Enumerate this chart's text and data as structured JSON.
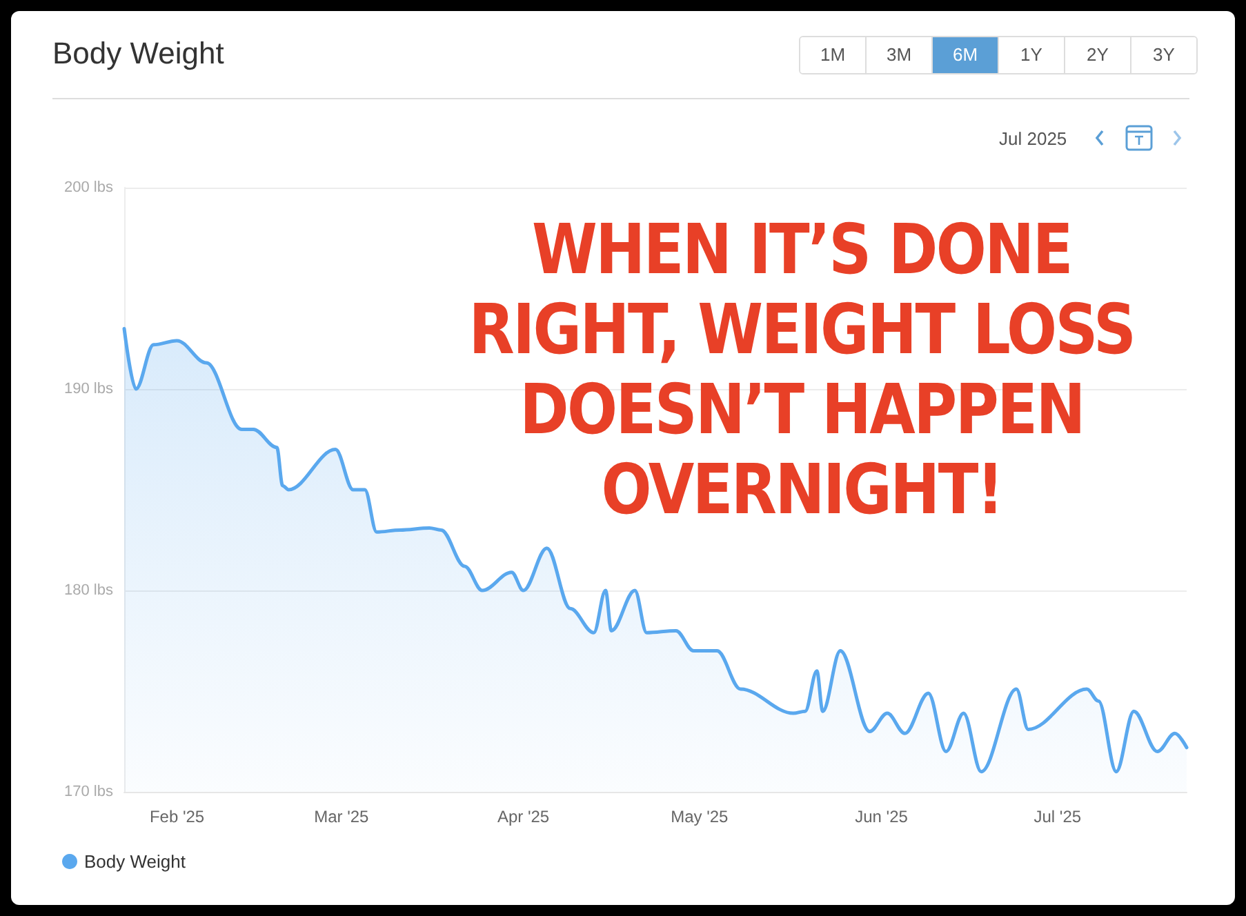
{
  "chart_data": {
    "type": "area",
    "title": "Body Weight",
    "annotations": [
      "WHEN IT’S DONE RIGHT, WEIGHT LOSS DOESN’T HAPPEN OVERNIGHT!",
      "Jul 2025",
      "1M",
      "3M",
      "6M",
      "1Y",
      "2Y",
      "3Y"
    ],
    "x": [
      "2025-01-23",
      "2025-01-25",
      "2025-01-28",
      "2025-02-01",
      "2025-02-06",
      "2025-02-12",
      "2025-02-14",
      "2025-02-18",
      "2025-02-19",
      "2025-02-20",
      "2025-02-28",
      "2025-03-03",
      "2025-03-05",
      "2025-03-07",
      "2025-03-11",
      "2025-03-16",
      "2025-03-18",
      "2025-03-22",
      "2025-03-25",
      "2025-03-30",
      "2025-04-01",
      "2025-04-05",
      "2025-04-09",
      "2025-04-13",
      "2025-04-15",
      "2025-04-16",
      "2025-04-20",
      "2025-04-22",
      "2025-04-27",
      "2025-04-30",
      "2025-05-04",
      "2025-05-08",
      "2025-05-17",
      "2025-05-19",
      "2025-05-21",
      "2025-05-22",
      "2025-05-25",
      "2025-05-30",
      "2025-06-02",
      "2025-06-05",
      "2025-06-09",
      "2025-06-12",
      "2025-06-15",
      "2025-06-18",
      "2025-06-24",
      "2025-06-26",
      "2025-07-06",
      "2025-07-08",
      "2025-07-11",
      "2025-07-14",
      "2025-07-18",
      "2025-07-21",
      "2025-07-23"
    ],
    "series": [
      {
        "name": "Body Weight",
        "color": "#5aa8ee",
        "values": [
          193.0,
          190.0,
          192.2,
          192.4,
          191.3,
          188.0,
          188.0,
          187.1,
          185.2,
          185.0,
          187.0,
          185.0,
          185.0,
          182.9,
          183.0,
          183.1,
          183.0,
          181.2,
          180.0,
          180.9,
          180.0,
          182.1,
          179.1,
          177.9,
          180.0,
          178.0,
          180.0,
          177.9,
          178.0,
          177.0,
          177.0,
          175.1,
          173.9,
          174.0,
          176.0,
          174.0,
          177.0,
          173.0,
          173.9,
          172.9,
          174.9,
          172.0,
          173.9,
          171.0,
          175.1,
          173.1,
          175.1,
          174.5,
          171.0,
          174.0,
          172.0,
          172.9,
          172.2
        ]
      }
    ],
    "xlim": [
      "2025-01-23",
      "2025-07-23"
    ],
    "xticks": [
      {
        "value": "2025-02-01",
        "label": "Feb '25"
      },
      {
        "value": "2025-03-01",
        "label": "Mar '25"
      },
      {
        "value": "2025-04-01",
        "label": "Apr '25"
      },
      {
        "value": "2025-05-01",
        "label": "May '25"
      },
      {
        "value": "2025-06-01",
        "label": "Jun '25"
      },
      {
        "value": "2025-07-01",
        "label": "Jul '25"
      }
    ],
    "ylim": [
      170,
      200
    ],
    "yticks": [
      {
        "value": 170,
        "label": "170 lbs"
      },
      {
        "value": 180,
        "label": "180 lbs"
      },
      {
        "value": 190,
        "label": "190 lbs"
      },
      {
        "value": 200,
        "label": "200 lbs"
      }
    ],
    "grid": "y",
    "legend": "bottom left",
    "marker": "none",
    "line_style": "solid"
  }
}
